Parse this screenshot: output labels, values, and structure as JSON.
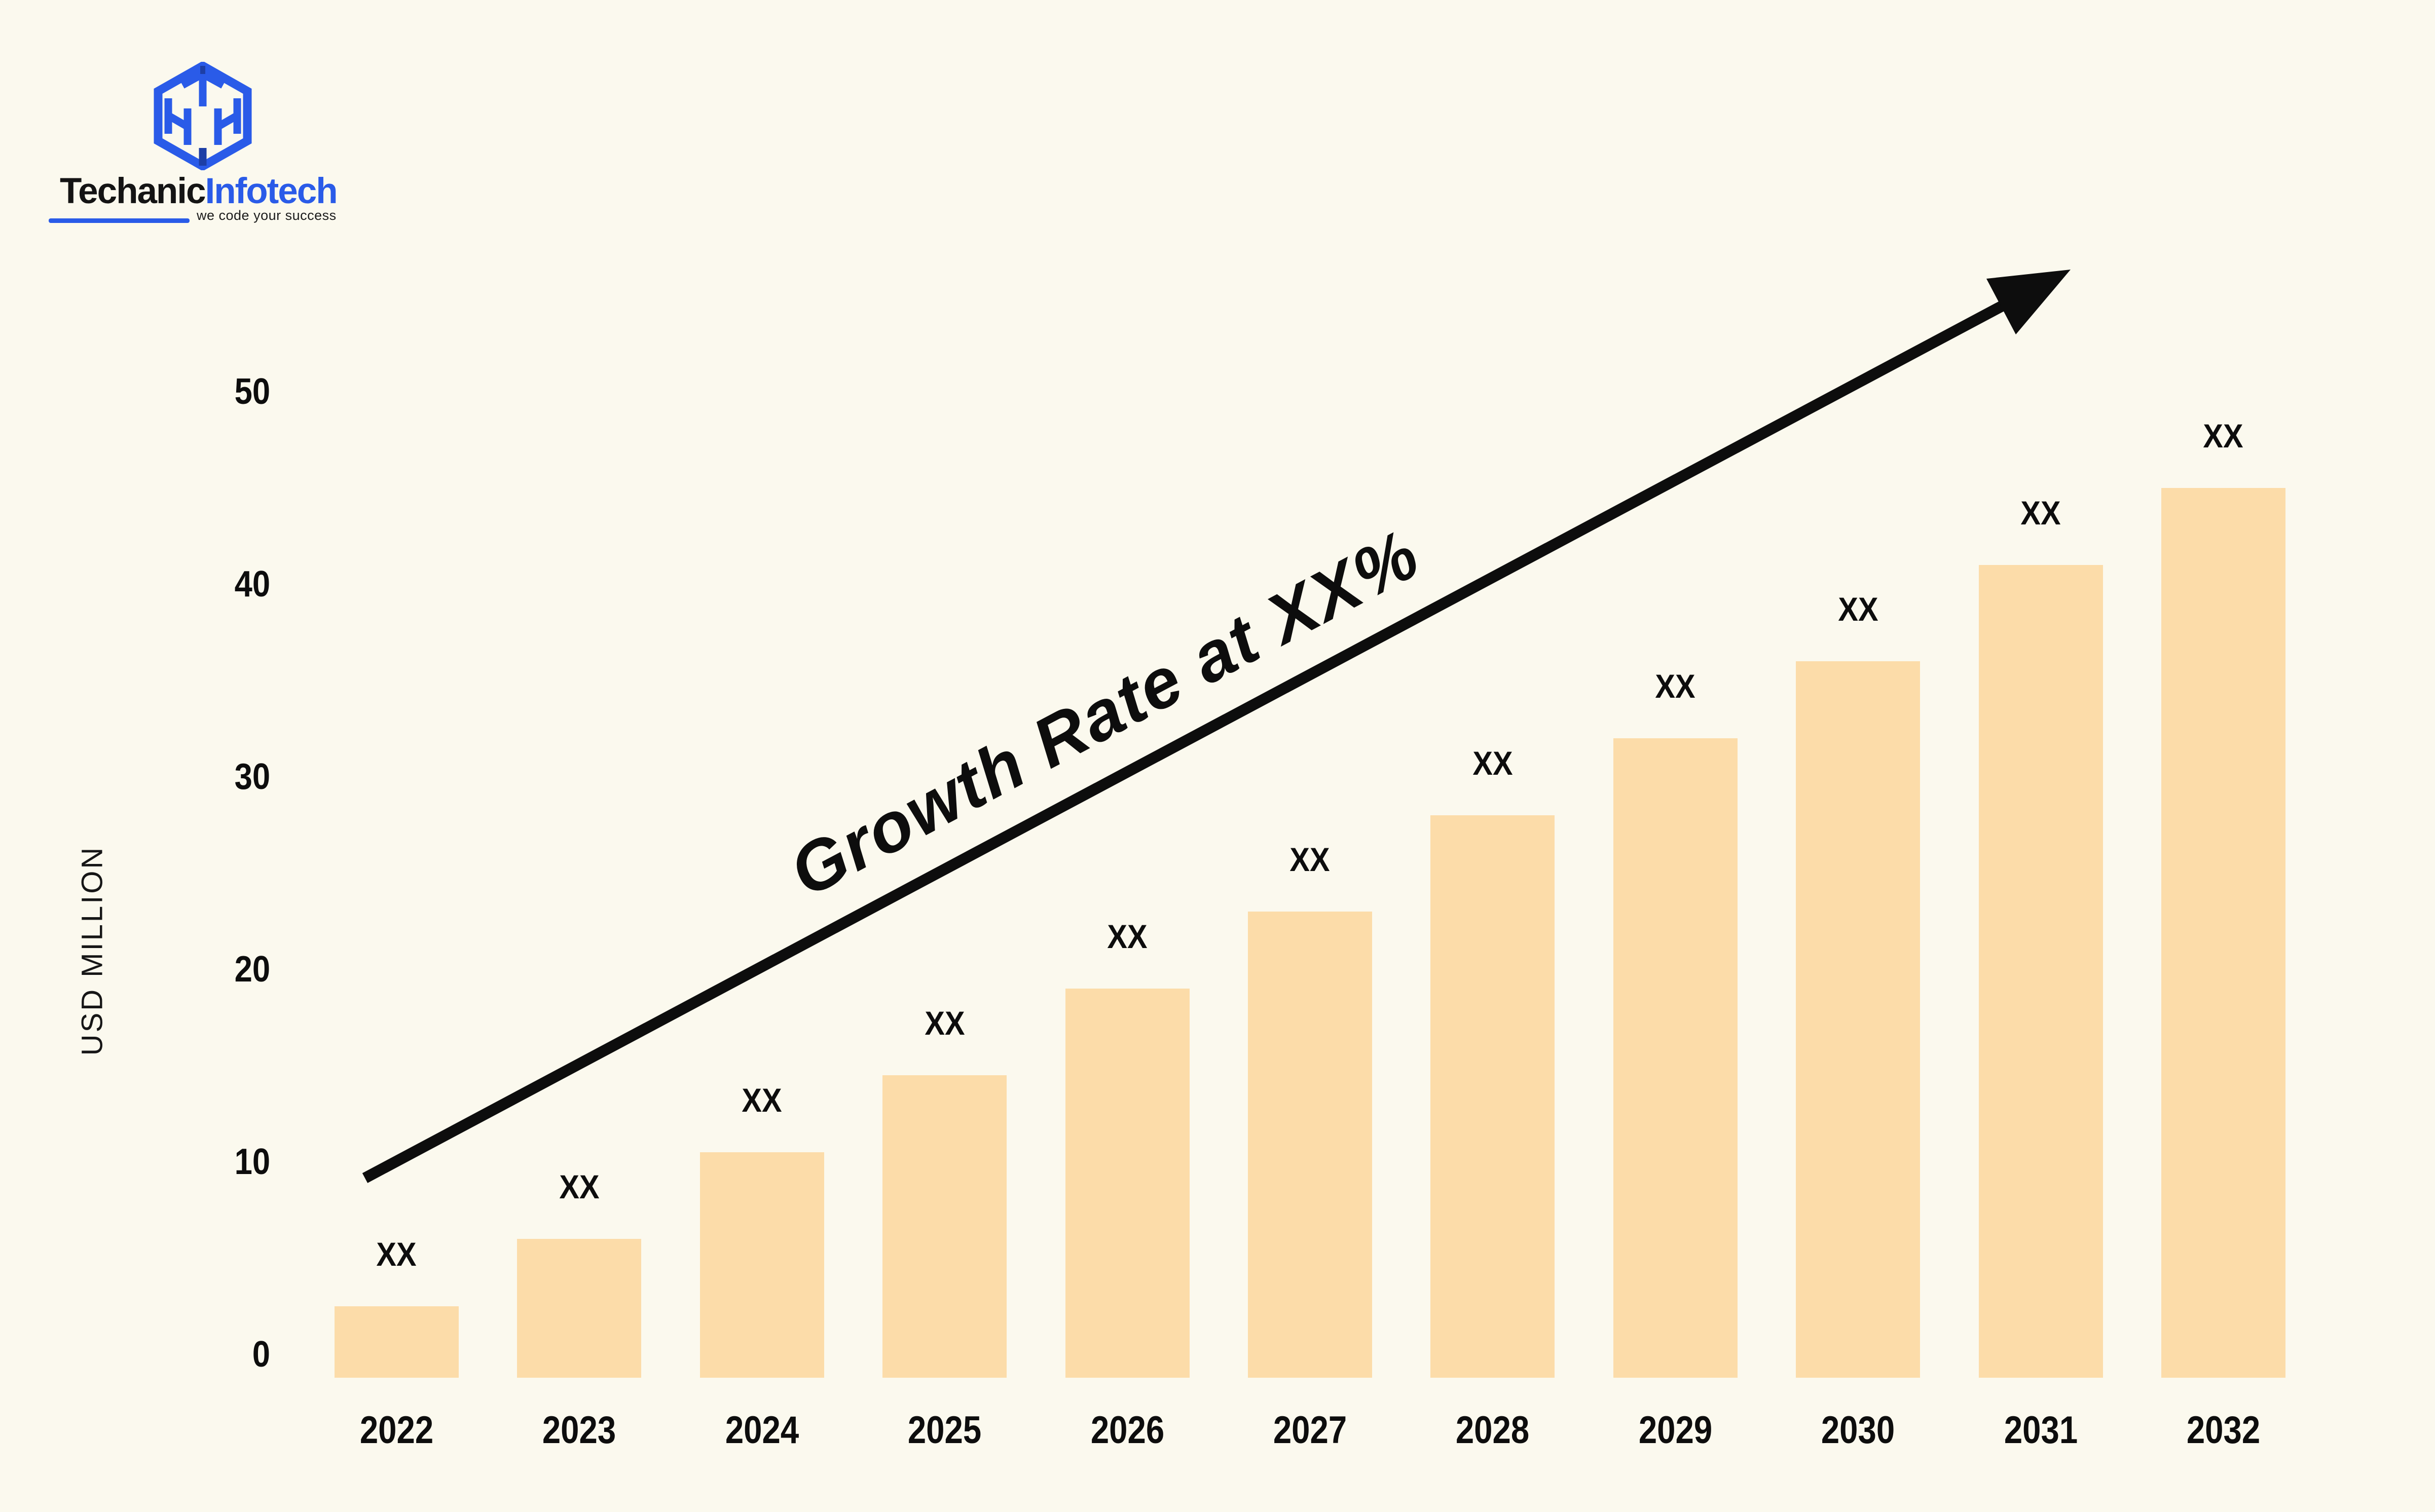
{
  "brand": {
    "name_primary": "Techanic",
    "name_secondary": "Infotech",
    "tagline": "we code your success",
    "logo_icon": "isometric-cube-logo",
    "primary_blue": "#2A5BE8"
  },
  "chart_data": {
    "type": "bar",
    "categories": [
      "2022",
      "2023",
      "2024",
      "2025",
      "2026",
      "2027",
      "2028",
      "2029",
      "2030",
      "2031",
      "2032"
    ],
    "values": [
      2.5,
      6,
      10.5,
      14.5,
      19,
      23,
      28,
      32,
      36,
      41,
      45
    ],
    "bar_labels": [
      "XX",
      "XX",
      "XX",
      "XX",
      "XX",
      "XX",
      "XX",
      "XX",
      "XX",
      "XX",
      "XX"
    ],
    "title": "",
    "xlabel": "",
    "ylabel": "USD MILLION",
    "yticks": [
      0,
      10,
      20,
      30,
      40,
      50
    ],
    "ylim": [
      0,
      50
    ],
    "annotation": "Growth Rate at XX%",
    "bar_color": "#FCDCA9",
    "background_color": "#FBF9EE",
    "text_color": "#0D0D0D",
    "arrow_color": "#0D0D0D",
    "legend_position": "none",
    "grid": "off"
  }
}
